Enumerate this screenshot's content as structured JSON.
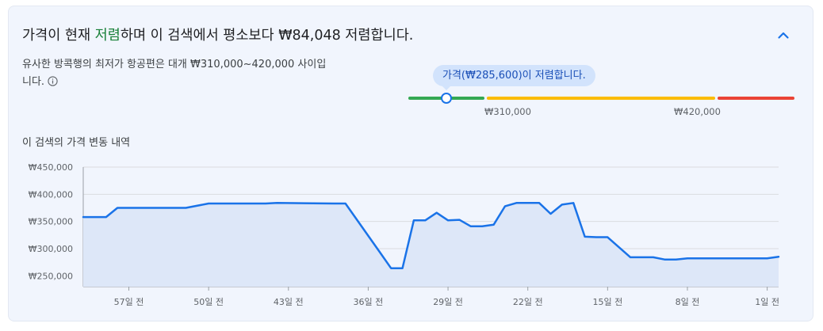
{
  "header": {
    "headline_prefix": "가격이 현재 ",
    "headline_low": "저렴",
    "headline_suffix": "하며 이 검색에서 평소보다 ₩84,048 저렴합니다.",
    "collapse_icon": "chevron-up-icon"
  },
  "summary": {
    "description": "유사한 방콕행의 최저가 항공편은 대개 ₩310,000~420,000 사이입니다.",
    "info_icon": "info-icon"
  },
  "price_range": {
    "tooltip": "가격(₩285,600)이 저렴합니다.",
    "low_bound_label": "₩310,000",
    "high_bound_label": "₩420,000",
    "current_price": 285600,
    "low_bound": 310000,
    "high_bound": 420000,
    "colors": {
      "low": "#34a853",
      "typical": "#fbbc04",
      "high": "#ea4335",
      "marker": "#1a73e8"
    }
  },
  "history": {
    "title": "이 검색의 가격 변동 내역"
  },
  "chart_data": {
    "type": "area",
    "title": "",
    "xlabel": "",
    "ylabel": "",
    "ylim": [
      230000,
      450000
    ],
    "xlim": [
      61,
      0
    ],
    "y_ticks": [
      450000,
      400000,
      350000,
      300000,
      250000
    ],
    "y_tick_labels": [
      "₩450,000",
      "₩400,000",
      "₩350,000",
      "₩300,000",
      "₩250,000"
    ],
    "x_ticks": [
      57,
      50,
      43,
      36,
      29,
      22,
      15,
      8,
      1
    ],
    "x_tick_labels": [
      "57일 전",
      "50일 전",
      "43일 전",
      "36일 전",
      "29일 전",
      "22일 전",
      "15일 전",
      "8일 전",
      "1일 전"
    ],
    "grid": true,
    "line_color": "#1a73e8",
    "fill_color": "#dde7f8",
    "series": [
      {
        "x": [
          61,
          59,
          58,
          57,
          56,
          52,
          50,
          49,
          46,
          45,
          44,
          39,
          38,
          35,
          34,
          33,
          32,
          31,
          30,
          29,
          28,
          27,
          26,
          25,
          24,
          23,
          22,
          21,
          20,
          19,
          18,
          17,
          16,
          15,
          13,
          11,
          10,
          9,
          8,
          6,
          3,
          1,
          0
        ],
        "y": [
          358000,
          358000,
          375000,
          375000,
          375000,
          375000,
          383000,
          383000,
          383000,
          383000,
          384000,
          383000,
          383000,
          294000,
          264000,
          264000,
          352000,
          352000,
          366000,
          352000,
          353000,
          341000,
          341000,
          344000,
          378000,
          384000,
          384000,
          384000,
          364000,
          381000,
          384000,
          322000,
          321000,
          321000,
          284000,
          284000,
          280000,
          280000,
          282000,
          282000,
          282000,
          282000,
          285000
        ]
      }
    ]
  }
}
